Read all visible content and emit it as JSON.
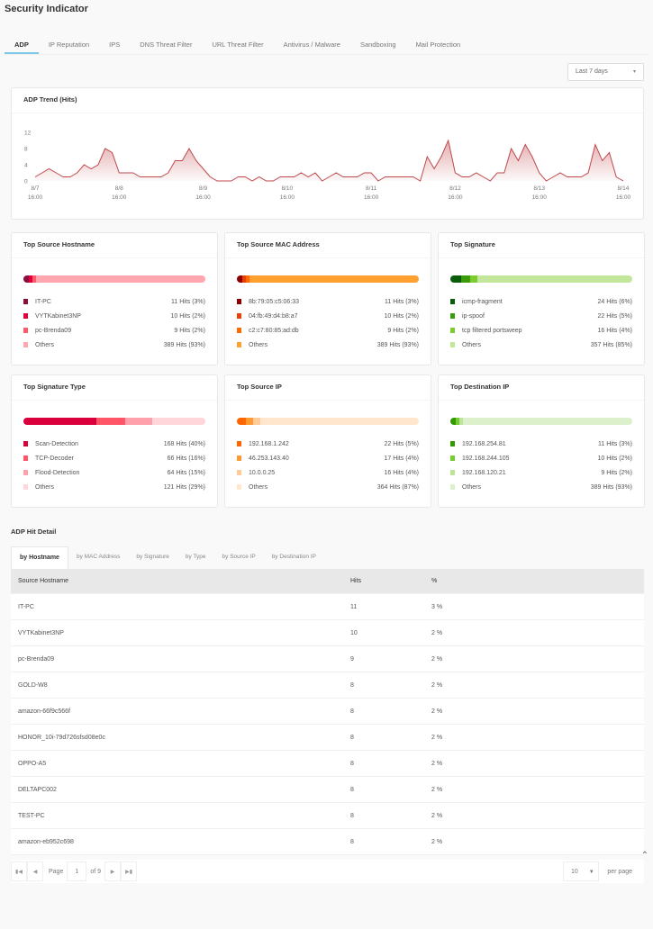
{
  "title": "Security Indicator",
  "tabs": [
    "ADP",
    "IP Reputation",
    "IPS",
    "DNS Threat Filter",
    "URL Threat Filter",
    "Antivirus / Malware",
    "Sandboxing",
    "Mail Protection"
  ],
  "range": {
    "value": "Last 7 days"
  },
  "chart_data": {
    "type": "area",
    "title": "ADP Trend (Hits)",
    "ylim": [
      0,
      12
    ],
    "yticks": [
      "0",
      "4",
      "8",
      "12"
    ],
    "xticks": [
      [
        "8/7",
        "16:00"
      ],
      [
        "8/8",
        "16:00"
      ],
      [
        "8/9",
        "16:00"
      ],
      [
        "8/10",
        "16:00"
      ],
      [
        "8/11",
        "16:00"
      ],
      [
        "8/12",
        "16:00"
      ],
      [
        "8/13",
        "16:00"
      ],
      [
        "8/14",
        "16:00"
      ]
    ],
    "color": "#c0484c",
    "x": [
      "8/7 16:00",
      "8/7 18:00",
      "8/7 20:00",
      "8/7 22:00",
      "8/8 00:00",
      "8/8 02:00",
      "8/8 04:00",
      "8/8 06:00",
      "8/8 08:00",
      "8/8 10:00",
      "8/8 12:00",
      "8/8 14:00",
      "8/8 16:00",
      "8/8 18:00",
      "8/8 20:00",
      "8/8 22:00",
      "8/9 00:00",
      "8/9 02:00",
      "8/9 04:00",
      "8/9 06:00",
      "8/9 08:00",
      "8/9 10:00",
      "8/9 12:00",
      "8/9 14:00",
      "8/9 16:00",
      "8/9 18:00",
      "8/9 20:00",
      "8/9 22:00",
      "8/10 00:00",
      "8/10 02:00",
      "8/10 04:00",
      "8/10 06:00",
      "8/10 08:00",
      "8/10 10:00",
      "8/10 12:00",
      "8/10 14:00",
      "8/10 16:00",
      "8/10 18:00",
      "8/10 20:00",
      "8/10 22:00",
      "8/11 00:00",
      "8/11 02:00",
      "8/11 04:00",
      "8/11 06:00",
      "8/11 08:00",
      "8/11 10:00",
      "8/11 12:00",
      "8/11 14:00",
      "8/11 16:00",
      "8/11 18:00",
      "8/11 20:00",
      "8/11 22:00",
      "8/12 00:00",
      "8/12 02:00",
      "8/12 04:00",
      "8/12 06:00",
      "8/12 08:00",
      "8/12 10:00",
      "8/12 12:00",
      "8/12 14:00",
      "8/12 16:00",
      "8/12 18:00",
      "8/12 20:00",
      "8/12 22:00",
      "8/13 00:00",
      "8/13 02:00",
      "8/13 04:00",
      "8/13 06:00",
      "8/13 08:00",
      "8/13 10:00",
      "8/13 12:00",
      "8/13 14:00",
      "8/13 16:00",
      "8/13 18:00",
      "8/13 20:00",
      "8/13 22:00",
      "8/14 00:00",
      "8/14 02:00",
      "8/14 04:00",
      "8/14 06:00",
      "8/14 08:00",
      "8/14 10:00",
      "8/14 12:00",
      "8/14 14:00",
      "8/14 16:00"
    ],
    "values": [
      1,
      2,
      3,
      2,
      1,
      1,
      2,
      4,
      3,
      4,
      8,
      7,
      2,
      2,
      2,
      1,
      1,
      1,
      1,
      2,
      5,
      5,
      8,
      5,
      3,
      1,
      0,
      0,
      0,
      1,
      1,
      0,
      1,
      0,
      0,
      1,
      1,
      1,
      2,
      1,
      2,
      0,
      1,
      2,
      1,
      1,
      1,
      2,
      2,
      0,
      1,
      1,
      1,
      1,
      1,
      0,
      6,
      3,
      6,
      10,
      2,
      1,
      1,
      2,
      1,
      0,
      2,
      2,
      8,
      5,
      9,
      6,
      2,
      0,
      1,
      2,
      1,
      1,
      1,
      2,
      9,
      5,
      7,
      1,
      0
    ]
  },
  "stats": [
    {
      "title": "Top Source Hostname",
      "items": [
        {
          "label": "IT-PC",
          "hits": "11 Hits (3%)",
          "pct": 3,
          "color": "#8a0d3c"
        },
        {
          "label": "VYTKabinet3NP",
          "hits": "10 Hits (2%)",
          "pct": 2,
          "color": "#e0003c"
        },
        {
          "label": "pc-Brenda09",
          "hits": "9 Hits (2%)",
          "pct": 2,
          "color": "#ff5a6a"
        },
        {
          "label": "Others",
          "hits": "389 Hits (93%)",
          "pct": 93,
          "color": "#ffa6ae"
        }
      ]
    },
    {
      "title": "Top Source MAC Address",
      "items": [
        {
          "label": "8b:79:05:c5:06:33",
          "hits": "11 Hits (3%)",
          "pct": 3,
          "color": "#8b0000"
        },
        {
          "label": "04:fb:49:d4:b8:a7",
          "hits": "10 Hits (2%)",
          "pct": 2,
          "color": "#e8400a"
        },
        {
          "label": "c2:c7:80:85:ad:db",
          "hits": "9 Hits (2%)",
          "pct": 2,
          "color": "#ff6a00"
        },
        {
          "label": "Others",
          "hits": "389 Hits (93%)",
          "pct": 93,
          "color": "#ffa030"
        }
      ]
    },
    {
      "title": "Top Signature",
      "items": [
        {
          "label": "icmp-fragment",
          "hits": "24 Hits (6%)",
          "pct": 6,
          "color": "#0a5c0a"
        },
        {
          "label": "ip-spoof",
          "hits": "22 Hits (5%)",
          "pct": 5,
          "color": "#3a9c0a"
        },
        {
          "label": "tcp filtered portsweep",
          "hits": "16 Hits (4%)",
          "pct": 4,
          "color": "#7ccc30"
        },
        {
          "label": "Others",
          "hits": "357 Hits (85%)",
          "pct": 85,
          "color": "#c2e69a"
        }
      ]
    },
    {
      "title": "Top Signature Type",
      "items": [
        {
          "label": "Scan-Detection",
          "hits": "168 Hits (40%)",
          "pct": 40,
          "color": "#d9003c"
        },
        {
          "label": "TCP-Decoder",
          "hits": "66 Hits (16%)",
          "pct": 16,
          "color": "#ff5566"
        },
        {
          "label": "Flood-Detection",
          "hits": "64 Hits (15%)",
          "pct": 15,
          "color": "#ffa0aa"
        },
        {
          "label": "Others",
          "hits": "121 Hits (29%)",
          "pct": 29,
          "color": "#ffd6da"
        }
      ]
    },
    {
      "title": "Top Source IP",
      "items": [
        {
          "label": "192.168.1.242",
          "hits": "22 Hits (5%)",
          "pct": 5,
          "color": "#ff6600"
        },
        {
          "label": "46.253.143.40",
          "hits": "17 Hits (4%)",
          "pct": 4,
          "color": "#ff9933"
        },
        {
          "label": "10.0.0.25",
          "hits": "16 Hits (4%)",
          "pct": 4,
          "color": "#ffcc99"
        },
        {
          "label": "Others",
          "hits": "364 Hits (87%)",
          "pct": 87,
          "color": "#ffe6cc"
        }
      ]
    },
    {
      "title": "Top Destination IP",
      "items": [
        {
          "label": "192.168.254.81",
          "hits": "11 Hits (3%)",
          "pct": 3,
          "color": "#339900"
        },
        {
          "label": "192.168.244.105",
          "hits": "10 Hits (2%)",
          "pct": 2,
          "color": "#77cc33"
        },
        {
          "label": "192.168.120.21",
          "hits": "9 Hits (2%)",
          "pct": 2,
          "color": "#bde59a"
        },
        {
          "label": "Others",
          "hits": "389 Hits (93%)",
          "pct": 93,
          "color": "#ddf0cc"
        }
      ]
    }
  ],
  "detail": {
    "title": "ADP Hit Detail",
    "tabs": [
      "by Hostname",
      "by MAC Address",
      "by Signature",
      "by Type",
      "by Source IP",
      "by Destination IP"
    ],
    "columns": [
      "Source Hostname",
      "Hits",
      "%"
    ],
    "rows": [
      [
        "IT-PC",
        "11",
        "3 %"
      ],
      [
        "VYTKabinet3NP",
        "10",
        "2 %"
      ],
      [
        "pc-Brenda09",
        "9",
        "2 %"
      ],
      [
        "GOLD-W8",
        "8",
        "2 %"
      ],
      [
        "amazon-66f9c566f",
        "8",
        "2 %"
      ],
      [
        "HONOR_10i-79d726sfsd08e0c",
        "8",
        "2 %"
      ],
      [
        "OPPO-A5",
        "8",
        "2 %"
      ],
      [
        "DELTAPC002",
        "8",
        "2 %"
      ],
      [
        "TEST-PC",
        "8",
        "2 %"
      ],
      [
        "amazon-eb952c698",
        "8",
        "2 %"
      ]
    ],
    "pager": {
      "page_label": "Page",
      "page": "1",
      "of": "of 9",
      "per_page": "10",
      "per_page_label": "per page"
    }
  }
}
